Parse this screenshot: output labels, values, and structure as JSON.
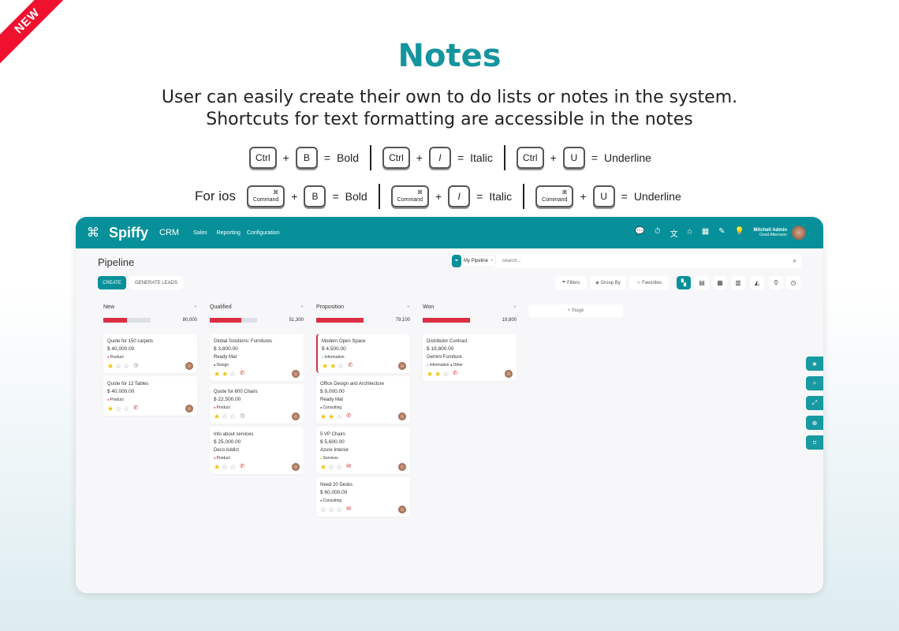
{
  "badge": "NEW",
  "heading": "Notes",
  "subtitle": [
    "User can easily create their own to do lists or notes in the system.",
    "Shortcuts for text formatting are accessible in the notes"
  ],
  "shortcuts": {
    "windows": [
      {
        "mod": "Ctrl",
        "key": "B",
        "label": "Bold"
      },
      {
        "mod": "Ctrl",
        "key": "I",
        "label": "Italic"
      },
      {
        "mod": "Ctrl",
        "key": "U",
        "label": "Underline"
      }
    ],
    "ios_label": "For ios",
    "ios": [
      {
        "mod": "Command",
        "key": "B",
        "label": "Bold"
      },
      {
        "mod": "Command",
        "key": "I",
        "label": "Italic"
      },
      {
        "mod": "Command",
        "key": "U",
        "label": "Underline"
      }
    ],
    "plus": "+",
    "equals": "="
  },
  "app": {
    "brand": "Spiffy",
    "module": "CRM",
    "menu": [
      "Sales",
      "Reporting",
      "Configuration"
    ],
    "user": {
      "name": "Mitchell Admin",
      "greeting": "Good Afternoon"
    },
    "page_title": "Pipeline",
    "create": "CREATE",
    "generate": "GENERATE LEADS",
    "facet": "My Pipeline",
    "search_placeholder": "Search...",
    "filters": "Filters",
    "group_by": "Group By",
    "favorites": "Favorites",
    "add_stage": "+ Stage",
    "accent": "#07909a",
    "columns": [
      {
        "name": "New",
        "total": "80,000",
        "progress": 50,
        "cards": [
          {
            "title": "Quote for 150 carpets",
            "amount": "$ 40,000.00",
            "tags": [
              {
                "t": "Product",
                "c": "#dc2e44"
              }
            ],
            "stars": 1,
            "activity": "clock"
          },
          {
            "title": "Quote for 12 Tables",
            "amount": "$ 40,000.00",
            "tags": [
              {
                "t": "Product",
                "c": "#dc2e44"
              }
            ],
            "stars": 1,
            "activity": "phone"
          }
        ]
      },
      {
        "name": "Qualified",
        "total": "51,300",
        "progress": 67,
        "cards": [
          {
            "title": "Global Solutions: Furnitures",
            "amount": "$ 3,800.00",
            "customer": "Ready Mat",
            "tags": [
              {
                "t": "Design",
                "c": "#4a1526"
              }
            ],
            "stars": 2,
            "activity": "phone"
          },
          {
            "title": "Quote for 600 Chairs",
            "amount": "$ 22,500.00",
            "tags": [
              {
                "t": "Product",
                "c": "#dc2e44"
              }
            ],
            "stars": 1,
            "activity": "clock"
          },
          {
            "title": "Info about services",
            "amount": "$ 25,000.00",
            "customer": "Deco Addict",
            "tags": [
              {
                "t": "Product",
                "c": "#dc2e44"
              }
            ],
            "stars": 1,
            "activity": "phone"
          }
        ]
      },
      {
        "name": "Proposition",
        "total": "79,100",
        "progress": 100,
        "cards": [
          {
            "title": "Modern Open Space",
            "amount": "$ 4,500.00",
            "tags": [
              {
                "t": "Information",
                "c": "#5bc0de"
              }
            ],
            "stars": 2,
            "activity": "phone",
            "highlight": true
          },
          {
            "title": "Office Design and Architecture",
            "amount": "$ 9,000.00",
            "customer": "Ready Mat",
            "tags": [
              {
                "t": "Consulting",
                "c": "#0a6b73"
              }
            ],
            "stars": 2,
            "activity": "phone"
          },
          {
            "title": "5 VP Chairs",
            "amount": "$ 5,600.00",
            "customer": "Azure Interior",
            "tags": [
              {
                "t": "Services",
                "c": "#f3c400"
              }
            ],
            "stars": 1,
            "activity": "mail"
          },
          {
            "title": "Need 20 Desks",
            "amount": "$ 60,000.00",
            "tags": [
              {
                "t": "Consulting",
                "c": "#0a6b73"
              }
            ],
            "stars": 0,
            "activity": "mail"
          }
        ]
      },
      {
        "name": "Won",
        "total": "19,800",
        "progress": 100,
        "cards": [
          {
            "title": "Distributor Contract",
            "amount": "$ 19,800.00",
            "customer": "Gemini Furniture",
            "tags": [
              {
                "t": "Information",
                "c": "#5bc0de"
              },
              {
                "t": "Other",
                "c": "#1b2340"
              }
            ],
            "stars": 2,
            "activity": "phone"
          }
        ]
      }
    ]
  }
}
